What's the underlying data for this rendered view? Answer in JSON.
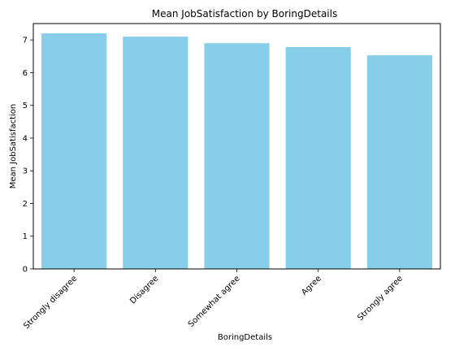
{
  "chart_data": {
    "type": "bar",
    "title": "Mean JobSatisfaction by BoringDetails",
    "xlabel": "BoringDetails",
    "ylabel": "Mean JobSatisfaction",
    "categories": [
      "Strongly disagree",
      "Disagree",
      "Somewhat agree",
      "Agree",
      "Strongly agree"
    ],
    "values": [
      7.2,
      7.1,
      6.9,
      6.78,
      6.53
    ],
    "ylim": [
      0,
      7.5
    ],
    "yticks": [
      0,
      1,
      2,
      3,
      4,
      5,
      6,
      7
    ],
    "bar_color": "#87CEEB",
    "grid": false,
    "legend": "none"
  }
}
